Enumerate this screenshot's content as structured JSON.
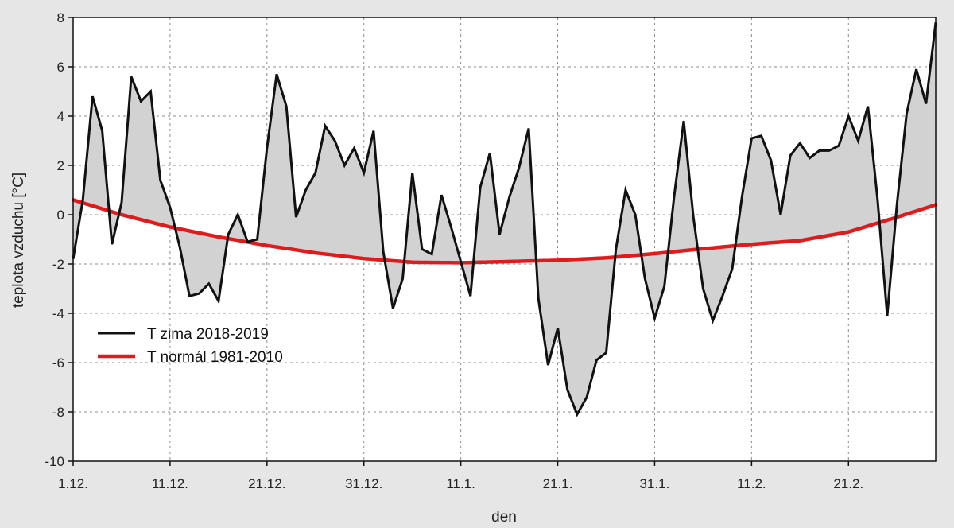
{
  "chart_data": {
    "type": "line",
    "xlabel": "den",
    "ylabel": "teplota vzduchu [°C]",
    "ylim": [
      -10,
      8
    ],
    "yticks": [
      -10,
      -8,
      -6,
      -4,
      -2,
      0,
      2,
      4,
      6,
      8
    ],
    "xlim": [
      1,
      90
    ],
    "xticks": [
      {
        "day": 1,
        "label": "1.12."
      },
      {
        "day": 11,
        "label": "11.12."
      },
      {
        "day": 21,
        "label": "21.12."
      },
      {
        "day": 31,
        "label": "31.12."
      },
      {
        "day": 41,
        "label": "11.1."
      },
      {
        "day": 51,
        "label": "21.1."
      },
      {
        "day": 61,
        "label": "31.1."
      },
      {
        "day": 71,
        "label": "11.2."
      },
      {
        "day": 81,
        "label": "21.2."
      }
    ],
    "grid": true,
    "legend_position": "lower-left",
    "colors": {
      "actual": "#111111",
      "normal": "#e31a1c",
      "fill": "#d2d2d2",
      "background": "#e6e6e6",
      "plot_bg": "#ffffff"
    },
    "series": [
      {
        "name": "T zima 2018-2019",
        "color": "#111111",
        "x": [
          1,
          2,
          3,
          4,
          5,
          6,
          7,
          8,
          9,
          10,
          11,
          12,
          13,
          14,
          15,
          16,
          17,
          18,
          19,
          20,
          21,
          22,
          23,
          24,
          25,
          26,
          27,
          28,
          29,
          30,
          31,
          32,
          33,
          34,
          35,
          36,
          37,
          38,
          39,
          40,
          41,
          42,
          43,
          44,
          45,
          46,
          47,
          48,
          49,
          50,
          51,
          52,
          53,
          54,
          55,
          56,
          57,
          58,
          59,
          60,
          61,
          62,
          63,
          64,
          65,
          66,
          67,
          68,
          69,
          70,
          71,
          72,
          73,
          74,
          75,
          76,
          77,
          78,
          79,
          80,
          81,
          82,
          83,
          84,
          85,
          86,
          87,
          88,
          89,
          90
        ],
        "values": [
          -1.8,
          0.6,
          4.8,
          3.4,
          -1.2,
          0.5,
          5.6,
          4.6,
          5.0,
          1.4,
          0.3,
          -1.3,
          -3.3,
          -3.2,
          -2.8,
          -3.5,
          -0.8,
          0.0,
          -1.1,
          -1.0,
          2.7,
          5.7,
          4.4,
          -0.1,
          1.0,
          1.7,
          3.6,
          3.0,
          2.0,
          2.7,
          1.7,
          3.4,
          -1.5,
          -3.8,
          -2.6,
          1.7,
          -1.4,
          -1.6,
          0.8,
          -0.5,
          -1.9,
          -3.3,
          1.1,
          2.5,
          -0.8,
          0.7,
          1.9,
          3.5,
          -3.4,
          -6.1,
          -4.6,
          -7.1,
          -8.1,
          -7.4,
          -5.9,
          -5.6,
          -1.4,
          1.0,
          0.0,
          -2.6,
          -4.2,
          -2.9,
          0.7,
          3.8,
          -0.1,
          -3.0,
          -4.3,
          -3.3,
          -2.2,
          0.7,
          3.1,
          3.2,
          2.2,
          0.0,
          2.4,
          2.9,
          2.3,
          2.6,
          2.6,
          2.8,
          4.0,
          3.0,
          4.4,
          0.6,
          -4.1,
          0.4,
          4.1,
          5.9,
          4.5,
          7.8
        ]
      },
      {
        "name": "T normál 1981-2010",
        "color": "#e31a1c",
        "x": [
          1,
          6,
          11,
          16,
          21,
          26,
          31,
          36,
          41,
          46,
          51,
          56,
          61,
          66,
          71,
          76,
          81,
          86,
          90
        ],
        "values": [
          0.6,
          0.0,
          -0.5,
          -0.9,
          -1.25,
          -1.55,
          -1.78,
          -1.93,
          -1.95,
          -1.9,
          -1.85,
          -1.75,
          -1.58,
          -1.38,
          -1.2,
          -1.05,
          -0.7,
          -0.1,
          0.4
        ]
      }
    ]
  }
}
